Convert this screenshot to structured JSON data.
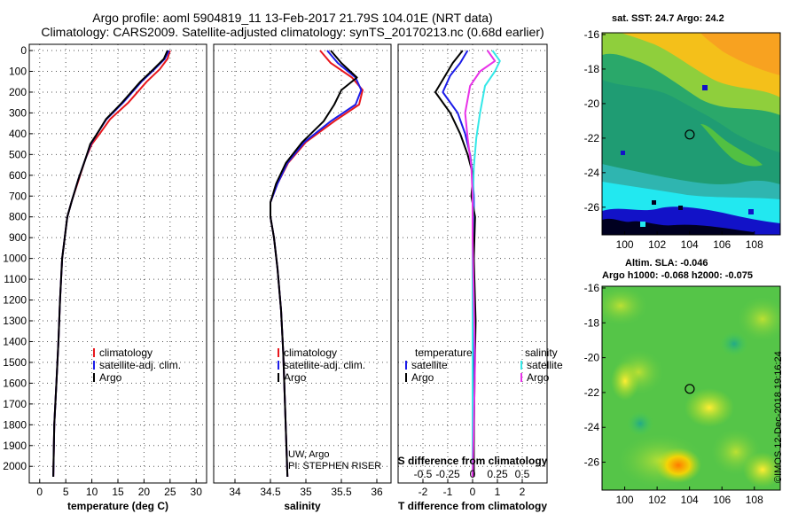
{
  "titles": {
    "line1": "Argo profile: aoml 5904819_11 13-Feb-2017 21.79S 104.01E (NRT data)",
    "line2": "Climatology: CARS2009. Satellite-adjusted climatology: synTS_20170213.nc (0.68d earlier)"
  },
  "colors": {
    "climatology": "#e8171d",
    "satellite": "#1c1ce8",
    "argo": "#000000",
    "sal_satellite": "#33e8e8",
    "sal_argo": "#e833e8"
  },
  "chart_data": [
    {
      "type": "line",
      "panel": "temperature",
      "xlabel": "temperature (deg C)",
      "ylabel": "",
      "xlim": [
        -2,
        32
      ],
      "ylim": [
        2080,
        -30
      ],
      "xticks": [
        "0",
        "5",
        "10",
        "15",
        "20",
        "25",
        "30"
      ],
      "xtick_values": [
        0,
        5,
        10,
        15,
        20,
        25,
        30
      ],
      "yticks": [
        "0",
        "100",
        "200",
        "300",
        "400",
        "500",
        "600",
        "700",
        "800",
        "900",
        "1000",
        "1100",
        "1200",
        "1300",
        "1400",
        "1500",
        "1600",
        "1700",
        "1800",
        "1900",
        "2000"
      ],
      "ytick_values": [
        0,
        100,
        200,
        300,
        400,
        500,
        600,
        700,
        800,
        900,
        1000,
        1100,
        1200,
        1300,
        1400,
        1500,
        1600,
        1700,
        1800,
        1900,
        2000
      ],
      "legend": [
        "climatology",
        "satellite-adj. clim.",
        "Argo"
      ],
      "series": [
        {
          "name": "climatology",
          "color": "#e8171d",
          "x": [
            25,
            24.5,
            23,
            20.5,
            17,
            13.5,
            11.5,
            10,
            8.8,
            7.5,
            6.2,
            5.3,
            4.8,
            4.3,
            3.9,
            3.6,
            3.2,
            2.8,
            2.6
          ],
          "y": [
            0,
            40,
            90,
            150,
            250,
            330,
            400,
            450,
            520,
            620,
            720,
            800,
            900,
            1000,
            1200,
            1400,
            1600,
            1800,
            2050
          ]
        },
        {
          "name": "satellite-adj. clim.",
          "color": "#1c1ce8",
          "x": [
            24.8,
            24,
            22,
            19.5,
            16,
            12.8,
            11,
            9.8,
            8.8,
            7.4,
            6.2,
            5.3,
            4.8,
            4.3,
            3.9,
            3.6,
            3.2,
            2.8,
            2.6
          ],
          "y": [
            0,
            40,
            90,
            150,
            250,
            330,
            400,
            450,
            520,
            620,
            720,
            800,
            900,
            1000,
            1200,
            1400,
            1600,
            1800,
            2050
          ]
        },
        {
          "name": "Argo",
          "color": "#000000",
          "x": [
            24.5,
            23.8,
            21.8,
            19.3,
            15.8,
            12.7,
            11,
            9.7,
            8.8,
            7.4,
            6.2,
            5.3,
            4.8,
            4.3,
            3.9,
            3.6,
            3.2,
            2.8,
            2.6
          ],
          "y": [
            0,
            40,
            90,
            150,
            250,
            330,
            400,
            450,
            520,
            620,
            720,
            800,
            900,
            1000,
            1200,
            1400,
            1600,
            1800,
            2050
          ]
        }
      ]
    },
    {
      "type": "line",
      "panel": "salinity",
      "xlabel": "salinity",
      "xlim": [
        33.7,
        36.2
      ],
      "ylim": [
        2080,
        -30
      ],
      "xticks": [
        "34",
        "34.5",
        "35",
        "35.5",
        "36"
      ],
      "xtick_values": [
        34,
        34.5,
        35,
        35.5,
        36
      ],
      "legend": [
        "climatology",
        "satellite-adj. clim.",
        "Argo"
      ],
      "credits": [
        "UW, Argo",
        "PI: STEPHEN RISER"
      ],
      "series": [
        {
          "name": "climatology",
          "color": "#e8171d",
          "x": [
            35.2,
            35.35,
            35.65,
            35.8,
            35.75,
            35.4,
            35.0,
            34.75,
            34.6,
            34.5,
            34.5,
            34.55,
            34.6,
            34.65,
            34.68,
            34.7,
            34.72,
            34.74
          ],
          "y": [
            0,
            60,
            130,
            190,
            260,
            340,
            440,
            540,
            640,
            730,
            800,
            900,
            1050,
            1250,
            1450,
            1650,
            1850,
            2050
          ]
        },
        {
          "name": "satellite-adj. clim.",
          "color": "#1c1ce8",
          "x": [
            35.3,
            35.45,
            35.7,
            35.78,
            35.7,
            35.35,
            34.98,
            34.74,
            34.6,
            34.5,
            34.5,
            34.55,
            34.6,
            34.65,
            34.68,
            34.7,
            34.72,
            34.74
          ],
          "y": [
            0,
            60,
            130,
            190,
            260,
            340,
            440,
            540,
            640,
            730,
            800,
            900,
            1050,
            1250,
            1450,
            1650,
            1850,
            2050
          ]
        },
        {
          "name": "Argo",
          "color": "#000000",
          "x": [
            35.35,
            35.5,
            35.72,
            35.5,
            35.4,
            35.25,
            34.95,
            34.72,
            34.58,
            34.5,
            34.5,
            34.55,
            34.6,
            34.65,
            34.68,
            34.7,
            34.72,
            34.74
          ],
          "y": [
            0,
            60,
            130,
            190,
            260,
            340,
            440,
            540,
            640,
            730,
            800,
            900,
            1050,
            1250,
            1450,
            1650,
            1850,
            2050
          ]
        }
      ]
    },
    {
      "type": "line",
      "panel": "difference",
      "xlabel": "T difference from climatology",
      "xlabel2": "S difference from climatology",
      "xlim": [
        -3,
        3
      ],
      "ylim": [
        2080,
        -30
      ],
      "xticks": [
        "-2",
        "-1",
        "0",
        "1",
        "2"
      ],
      "xtick_values": [
        -2,
        -1,
        0,
        1,
        2
      ],
      "sticks": [
        "-0.5",
        "-0.25",
        "0",
        "0.25",
        "0.5"
      ],
      "stick_values": [
        -2,
        -1,
        0,
        1,
        2
      ],
      "legend_temperature": {
        "title": "temperature",
        "items": [
          "satellite",
          "Argo"
        ]
      },
      "legend_salinity": {
        "title": "salinity",
        "items": [
          "satellite",
          "Argo"
        ]
      },
      "series": [
        {
          "name": "T satellite",
          "color": "#1c1ce8",
          "x": [
            -0.2,
            -0.5,
            -0.9,
            -1.2,
            -0.6,
            -0.3,
            -0.1,
            0,
            0.05,
            0.05,
            0.05,
            0.05,
            0.05,
            0.03,
            0.02
          ],
          "y": [
            0,
            60,
            120,
            200,
            300,
            400,
            500,
            600,
            700,
            800,
            1000,
            1300,
            1600,
            1900,
            2050
          ]
        },
        {
          "name": "T Argo",
          "color": "#000000",
          "x": [
            -0.4,
            -0.8,
            -1.1,
            -1.5,
            -0.9,
            -0.5,
            -0.2,
            0.02,
            -0.05,
            0.1,
            0.05,
            0.12,
            0.08,
            0.05,
            0.05
          ],
          "y": [
            0,
            60,
            120,
            200,
            300,
            400,
            500,
            600,
            700,
            800,
            1000,
            1300,
            1600,
            1900,
            2050
          ]
        },
        {
          "name": "S satellite",
          "color": "#33e8e8",
          "x": [
            0.8,
            1.1,
            0.9,
            0.5,
            0.3,
            0.15,
            0.05,
            0.02,
            0,
            0,
            0,
            0,
            0
          ],
          "y": [
            0,
            50,
            100,
            170,
            300,
            420,
            560,
            700,
            900,
            1200,
            1500,
            1800,
            2050
          ]
        },
        {
          "name": "S Argo",
          "color": "#e833e8",
          "x": [
            0.6,
            0.9,
            0.3,
            -0.1,
            -0.3,
            -0.2,
            -0.05,
            0,
            0,
            0.05,
            0.1,
            0.05,
            0
          ],
          "y": [
            0,
            50,
            100,
            170,
            300,
            420,
            560,
            700,
            900,
            1200,
            1500,
            1800,
            2050
          ]
        }
      ]
    },
    {
      "type": "heatmap",
      "panel": "sst-map",
      "title": "sat. SST: 24.7 Argo: 24.2",
      "xticks": [
        "100",
        "102",
        "104",
        "106",
        "108"
      ],
      "xtick_values": [
        100,
        102,
        104,
        106,
        108
      ],
      "yticks": [
        "-16",
        "-18",
        "-20",
        "-22",
        "-24",
        "-26"
      ],
      "ytick_values": [
        -16,
        -18,
        -20,
        -22,
        -24,
        -26
      ],
      "xlim": [
        98.6,
        109.6
      ],
      "ylim": [
        -27.6,
        -15.9
      ],
      "marker": [
        104.01,
        -21.79
      ]
    },
    {
      "type": "heatmap",
      "panel": "sla-map",
      "title": "Altim. SLA: -0.046",
      "subtitle": "Argo h1000: -0.068 h2000: -0.075",
      "xticks": [
        "100",
        "102",
        "104",
        "106",
        "108"
      ],
      "xtick_values": [
        100,
        102,
        104,
        106,
        108
      ],
      "yticks": [
        "-16",
        "-18",
        "-20",
        "-22",
        "-24",
        "-26"
      ],
      "ytick_values": [
        -16,
        -18,
        -20,
        -22,
        -24,
        -26
      ],
      "xlim": [
        98.6,
        109.6
      ],
      "ylim": [
        -27.6,
        -15.9
      ],
      "marker": [
        104.01,
        -21.79
      ]
    }
  ],
  "watermark": "©IMOS 12-Dec-2018 19:16:24"
}
